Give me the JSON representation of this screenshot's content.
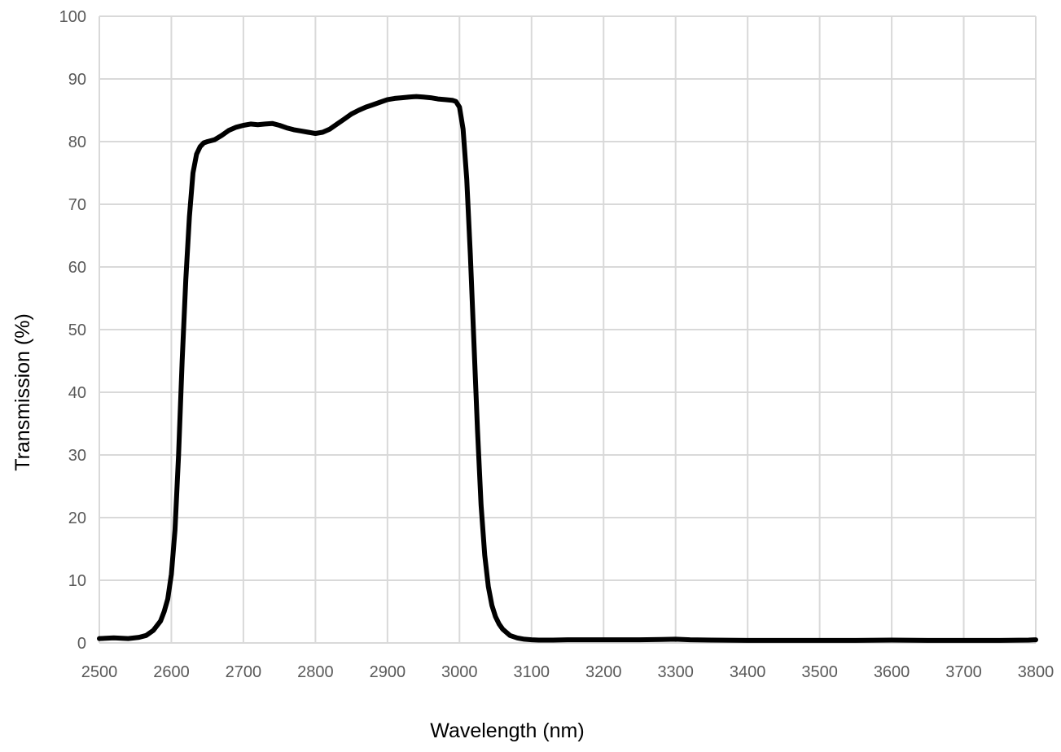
{
  "chart_data": {
    "type": "line",
    "title": "",
    "xlabel": "Wavelength (nm)",
    "ylabel": "Transmission (%)",
    "xlim": [
      2500,
      3800
    ],
    "ylim": [
      0,
      100
    ],
    "x_ticks": [
      2500,
      2600,
      2700,
      2800,
      2900,
      3000,
      3100,
      3200,
      3300,
      3400,
      3500,
      3600,
      3700,
      3800
    ],
    "y_ticks": [
      0,
      10,
      20,
      30,
      40,
      50,
      60,
      70,
      80,
      90,
      100
    ],
    "grid": true,
    "legend": "none",
    "line_color": "#000000",
    "grid_color": "#d9d9d9",
    "series": [
      {
        "x": [
          2500,
          2520,
          2540,
          2555,
          2565,
          2575,
          2585,
          2590,
          2595,
          2600,
          2605,
          2610,
          2615,
          2620,
          2625,
          2630,
          2635,
          2640,
          2645,
          2650,
          2660,
          2670,
          2680,
          2690,
          2700,
          2710,
          2720,
          2730,
          2740,
          2750,
          2760,
          2770,
          2780,
          2790,
          2800,
          2810,
          2820,
          2830,
          2840,
          2850,
          2860,
          2870,
          2880,
          2890,
          2900,
          2910,
          2920,
          2930,
          2940,
          2950,
          2960,
          2970,
          2980,
          2990,
          2995,
          3000,
          3005,
          3010,
          3015,
          3020,
          3025,
          3030,
          3035,
          3040,
          3045,
          3050,
          3055,
          3060,
          3070,
          3080,
          3090,
          3100,
          3110,
          3120,
          3130,
          3150,
          3200,
          3250,
          3280,
          3300,
          3320,
          3350,
          3400,
          3450,
          3500,
          3550,
          3600,
          3650,
          3700,
          3750,
          3790,
          3800
        ],
        "y": [
          0.7,
          0.8,
          0.7,
          0.9,
          1.2,
          2.0,
          3.5,
          5.0,
          7.0,
          11.0,
          18.0,
          30.0,
          45.0,
          58.0,
          68.0,
          75.0,
          78.0,
          79.2,
          79.8,
          80.0,
          80.3,
          81.0,
          81.8,
          82.3,
          82.6,
          82.8,
          82.7,
          82.8,
          82.9,
          82.6,
          82.2,
          81.9,
          81.7,
          81.5,
          81.3,
          81.5,
          82.0,
          82.8,
          83.6,
          84.4,
          85.0,
          85.5,
          85.9,
          86.3,
          86.7,
          86.9,
          87.0,
          87.1,
          87.2,
          87.1,
          87.0,
          86.8,
          86.7,
          86.6,
          86.4,
          85.5,
          82.0,
          74.0,
          62.0,
          48.0,
          34.0,
          22.0,
          14.0,
          9.0,
          6.0,
          4.2,
          3.0,
          2.2,
          1.2,
          0.8,
          0.6,
          0.5,
          0.45,
          0.45,
          0.45,
          0.5,
          0.5,
          0.5,
          0.55,
          0.6,
          0.5,
          0.45,
          0.4,
          0.4,
          0.4,
          0.4,
          0.45,
          0.4,
          0.4,
          0.4,
          0.45,
          0.5
        ]
      }
    ]
  }
}
